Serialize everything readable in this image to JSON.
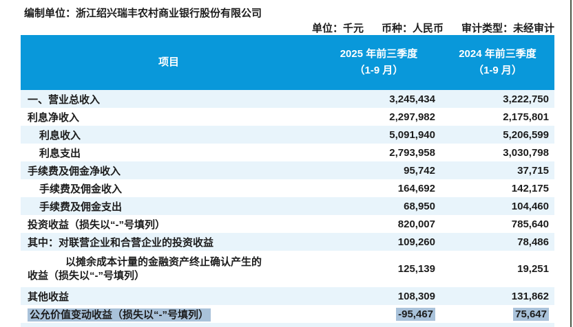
{
  "colors": {
    "header_bg": "#0998DA",
    "header_text": "#FFFFFF",
    "row_alt_bg": "#E8F4FB",
    "selection_bg": "#A9C2DA",
    "page_border": "#4A5646",
    "text": "#1C1C1C"
  },
  "meta": {
    "prepared_by_line": "编制单位：浙江绍兴瑞丰农村商业银行股份有限公司",
    "unit": "单位：千元",
    "currency": "币种：人民币",
    "audit_type": "审计类型：未经审计"
  },
  "table": {
    "columns": {
      "item": "项目",
      "y2025": {
        "line1": "2025 年前三季度",
        "line2": "（1-9 月）"
      },
      "y2024": {
        "line1": "2024 年前三季度",
        "line2": "（1-9 月）"
      }
    },
    "rows": [
      {
        "label": "一、营业总收入",
        "values": [
          "3,245,434",
          "3,222,750"
        ],
        "indent": 0,
        "shade": true
      },
      {
        "label": "利息净收入",
        "values": [
          "2,297,982",
          "2,175,801"
        ],
        "indent": 0,
        "shade": false
      },
      {
        "label": "利息收入",
        "values": [
          "5,091,940",
          "5,206,599"
        ],
        "indent": 1,
        "shade": true
      },
      {
        "label": "利息支出",
        "values": [
          "2,793,958",
          "3,030,798"
        ],
        "indent": 1,
        "shade": false
      },
      {
        "label": "手续费及佣金净收入",
        "values": [
          "95,742",
          "37,715"
        ],
        "indent": 0,
        "shade": true
      },
      {
        "label": "手续费及佣金收入",
        "values": [
          "164,692",
          "142,175"
        ],
        "indent": 1,
        "shade": false
      },
      {
        "label": "手续费及佣金支出",
        "values": [
          "68,950",
          "104,460"
        ],
        "indent": 1,
        "shade": true
      },
      {
        "label": "投资收益（损失以“-”号填列）",
        "values": [
          "820,007",
          "785,640"
        ],
        "indent": 0,
        "shade": false
      },
      {
        "label": "其中：对联营企业和合营企业的投资收益",
        "values": [
          "109,260",
          "78,486"
        ],
        "indent": 0,
        "shade": true
      },
      {
        "two_line": true,
        "label_line1": "以摊余成本计量的金融资产终止确认产生的",
        "label_line2": "收益（损失以“-”号填列）",
        "values": [
          "125,139",
          "19,251"
        ],
        "indent": 0,
        "shade": false
      },
      {
        "label": "其他收益",
        "values": [
          "108,309",
          "131,862"
        ],
        "indent": 0,
        "shade": true
      },
      {
        "label": "公允价值变动收益（损失以“-”号填列）",
        "values": [
          "-95,467",
          "75,647"
        ],
        "indent": 0,
        "shade": false,
        "highlight": true
      }
    ]
  }
}
